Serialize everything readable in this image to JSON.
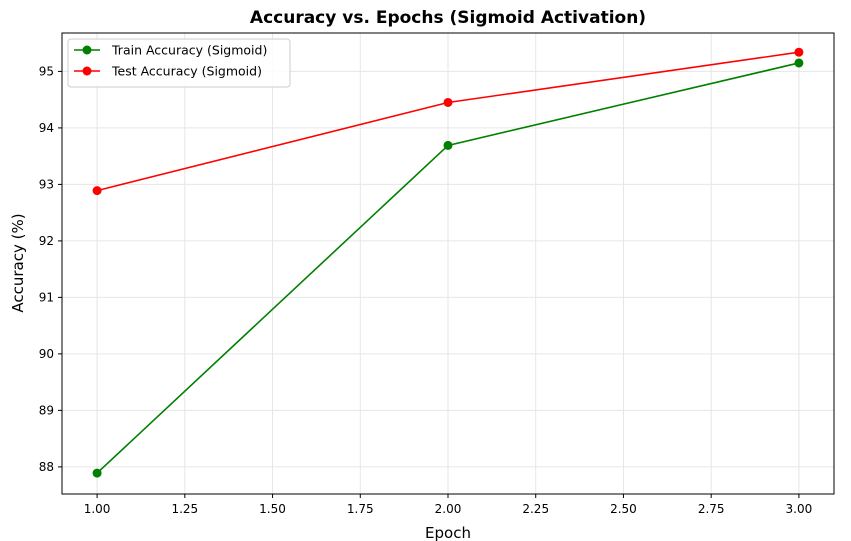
{
  "chart_data": {
    "type": "line",
    "title": "Accuracy vs. Epochs (Sigmoid Activation)",
    "xlabel": "Epoch",
    "ylabel": "Accuracy (%)",
    "x": [
      1.0,
      2.0,
      3.0
    ],
    "xlim": [
      0.9,
      3.1
    ],
    "ylim": [
      87.52,
      95.68
    ],
    "xticks": [
      "1.00",
      "1.25",
      "1.50",
      "1.75",
      "2.00",
      "2.25",
      "2.50",
      "2.75",
      "3.00"
    ],
    "yticks": [
      "88",
      "89",
      "90",
      "91",
      "92",
      "93",
      "94",
      "95"
    ],
    "grid": true,
    "legend_position": "top-left",
    "series": [
      {
        "name": "Train Accuracy (Sigmoid)",
        "color": "#008000",
        "values": [
          87.89,
          93.69,
          95.15
        ]
      },
      {
        "name": "Test Accuracy (Sigmoid)",
        "color": "#ff0000",
        "values": [
          92.89,
          94.45,
          95.34
        ]
      }
    ]
  }
}
